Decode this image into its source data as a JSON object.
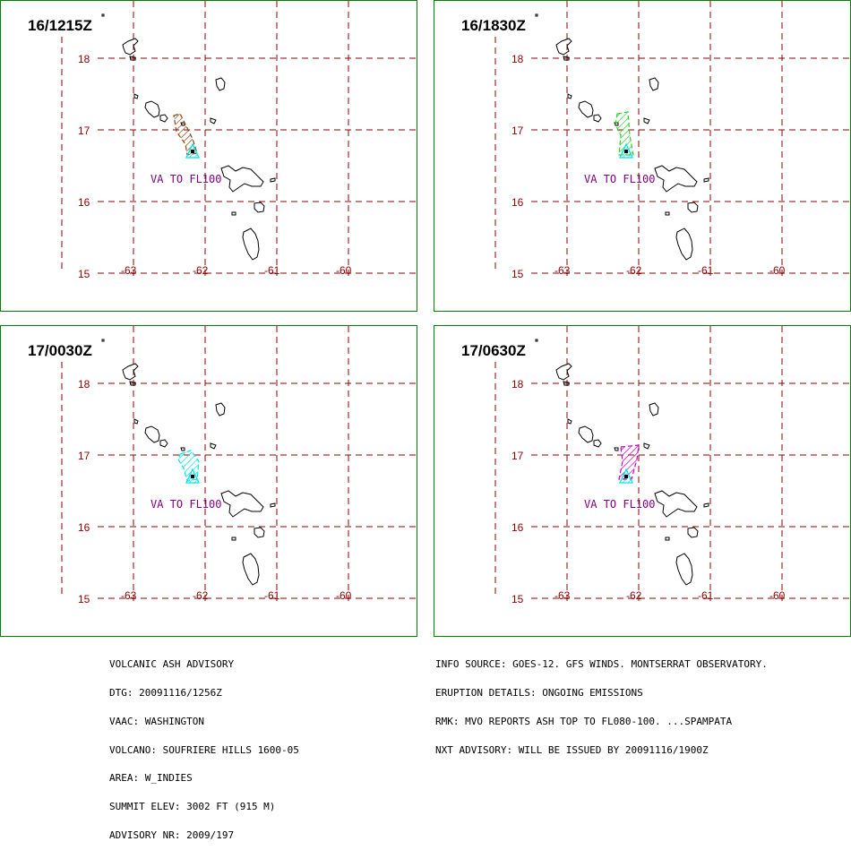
{
  "map": {
    "lat_labels": [
      "18",
      "17",
      "16",
      "15"
    ],
    "lon_labels": [
      "-63",
      "-62",
      "-61",
      "-60"
    ],
    "grid_color": "#8b0000",
    "label_color": "#8b0000"
  },
  "panels": [
    {
      "id": "p1",
      "title": "16/1215Z",
      "label": "VA TO FL100",
      "ash_color": "#8b4513",
      "ash_fill": "#8b4513"
    },
    {
      "id": "p2",
      "title": "16/1830Z",
      "label": "VA TO FL100",
      "ash_color": "#33cc33",
      "ash_fill": "#33cc33"
    },
    {
      "id": "p3",
      "title": "17/0030Z",
      "label": "VA TO FL100",
      "ash_color": "#00e5e5",
      "ash_fill": "#00e5e5"
    },
    {
      "id": "p4",
      "title": "17/0630Z",
      "label": "VA TO FL100",
      "ash_color": "#cc00cc",
      "ash_fill": "#cc00cc"
    }
  ],
  "colors": {
    "border": "#008000",
    "label": "#800080",
    "volcano": "#00e5e5"
  },
  "advisory_left": [
    "VOLCANIC ASH ADVISORY",
    "DTG: 20091116/1256Z",
    "VAAC: WASHINGTON",
    "VOLCANO: SOUFRIERE HILLS 1600-05",
    "AREA: W_INDIES",
    "SUMMIT ELEV: 3002 FT (915 M)",
    "ADVISORY NR: 2009/197"
  ],
  "advisory_right": [
    "INFO SOURCE: GOES-12. GFS WINDS. MONTSERRAT OBSERVATORY.",
    "ERUPTION DETAILS: ONGOING EMISSIONS",
    "RMK: MVO REPORTS ASH TOP TO FL080-100. ...SPAMPATA",
    "NXT ADVISORY: WILL BE ISSUED BY 20091116/1900Z"
  ]
}
